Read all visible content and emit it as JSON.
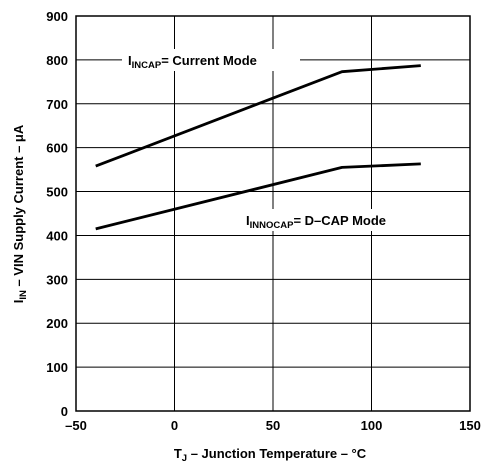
{
  "chart_data": {
    "type": "line",
    "xlabel": {
      "main": "T",
      "sub": "J",
      "rest": " – Junction Temperature – °C"
    },
    "ylabel": {
      "main": "I",
      "sub": "IN",
      "rest": " – VIN Supply Current – μA"
    },
    "xlim": [
      -50,
      150
    ],
    "ylim": [
      0,
      900
    ],
    "xticks": [
      -50,
      0,
      50,
      100,
      150
    ],
    "yticks": [
      0,
      100,
      200,
      300,
      400,
      500,
      600,
      700,
      800,
      900
    ],
    "grid": true,
    "series": [
      {
        "label": {
          "main": "I",
          "sub": "INCAP",
          "rest": "= Current Mode"
        },
        "x": [
          -40,
          85,
          125
        ],
        "y": [
          558,
          773,
          787
        ]
      },
      {
        "label": {
          "main": "I",
          "sub": "INNOCAP",
          "rest": "= D–CAP Mode"
        },
        "x": [
          -40,
          85,
          125
        ],
        "y": [
          415,
          555,
          563
        ]
      }
    ]
  }
}
